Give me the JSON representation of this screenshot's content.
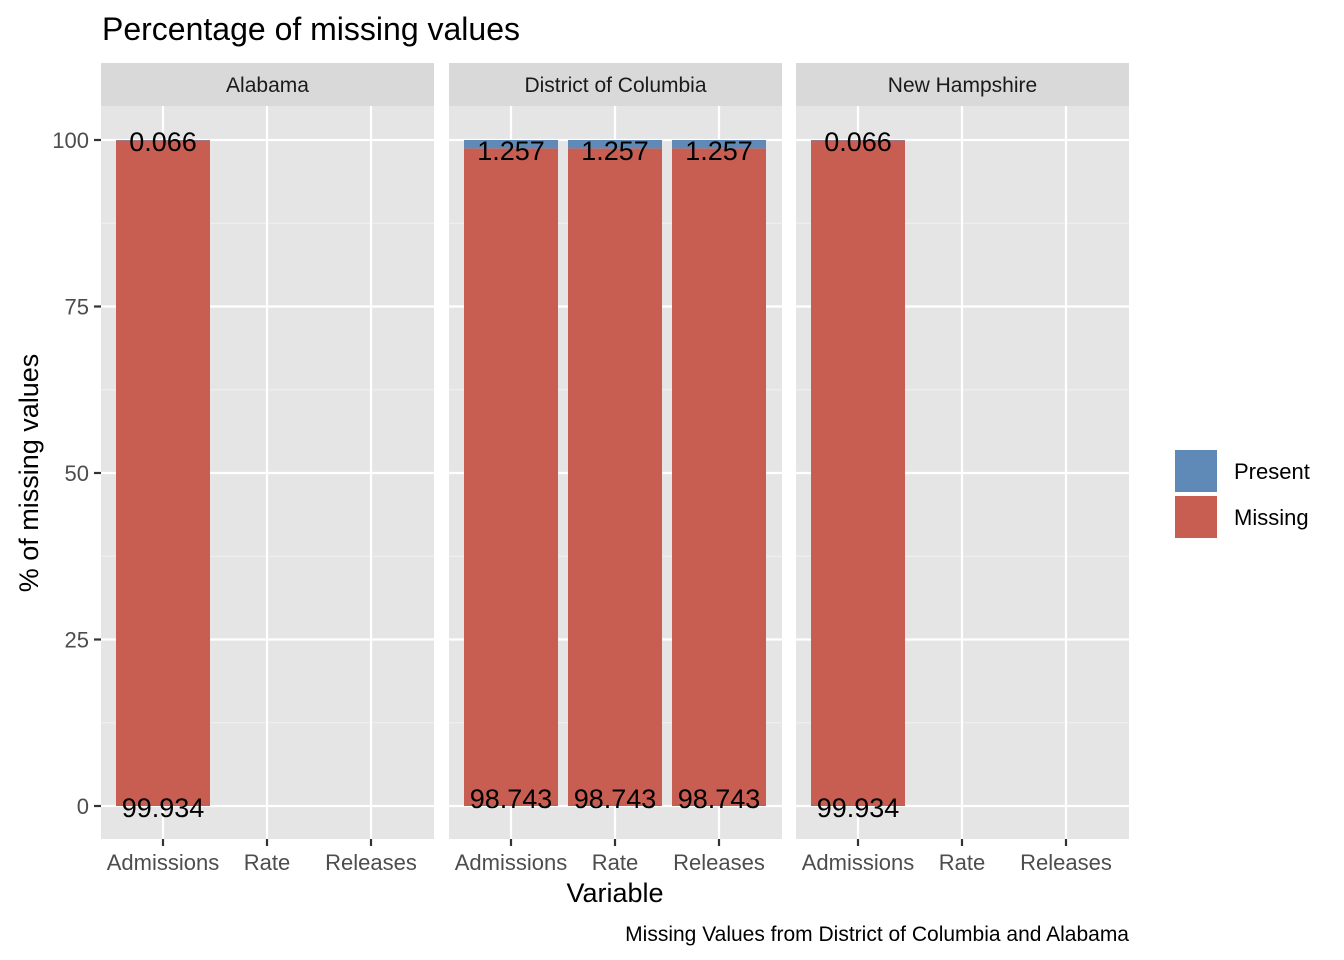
{
  "title": "Percentage of missing values",
  "caption": "Missing Values from District of Columbia and Alabama",
  "colors": {
    "Present": "#5f8ab8",
    "Missing": "#c75e51"
  },
  "chart_data": {
    "type": "bar",
    "stacked": true,
    "title": "Percentage of missing values",
    "xlabel": "Variable",
    "ylabel": "% of missing values",
    "ylim": [
      0,
      100
    ],
    "y_ticks": [
      0,
      25,
      50,
      75,
      100
    ],
    "grid": true,
    "categories": [
      "Admissions",
      "Rate",
      "Releases"
    ],
    "legend": {
      "position": "right",
      "entries": [
        "Present",
        "Missing"
      ]
    },
    "facets": [
      {
        "name": "Alabama",
        "bars": [
          {
            "category": "Admissions",
            "Missing": 99.934,
            "Present": 0.066,
            "missing_label": "99.934",
            "present_label": "0.066"
          }
        ]
      },
      {
        "name": "District of Columbia",
        "bars": [
          {
            "category": "Admissions",
            "Missing": 98.743,
            "Present": 1.257,
            "missing_label": "98.743",
            "present_label": "1.257"
          },
          {
            "category": "Rate",
            "Missing": 98.743,
            "Present": 1.257,
            "missing_label": "98.743",
            "present_label": "1.257"
          },
          {
            "category": "Releases",
            "Missing": 98.743,
            "Present": 1.257,
            "missing_label": "98.743",
            "present_label": "1.257"
          }
        ]
      },
      {
        "name": "New Hampshire",
        "bars": [
          {
            "category": "Admissions",
            "Missing": 99.934,
            "Present": 0.066,
            "missing_label": "99.934",
            "present_label": "0.066"
          }
        ]
      }
    ]
  }
}
